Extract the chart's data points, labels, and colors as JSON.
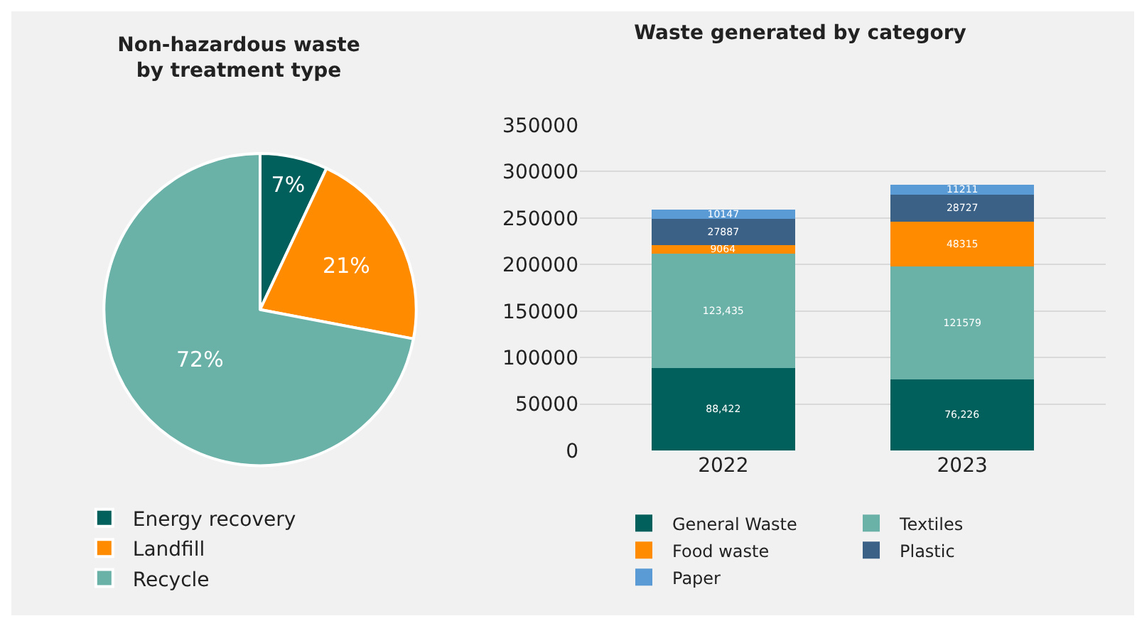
{
  "chart_data": [
    {
      "type": "pie",
      "title": "Non-hazardous waste\nby treatment type",
      "categories": [
        "Energy recovery",
        "Landfill",
        "Recycle"
      ],
      "values": [
        7,
        21,
        72
      ],
      "value_labels": [
        "7%",
        "21%",
        "72%"
      ],
      "colors": [
        "#02605c",
        "#ff8c00",
        "#6ab1a8"
      ],
      "legend": "bottom"
    },
    {
      "type": "bar",
      "title": "Waste generated by category",
      "categories": [
        "2022",
        "2023"
      ],
      "stacked": true,
      "ylim": [
        0,
        350000
      ],
      "yticks": [
        0,
        50000,
        100000,
        150000,
        200000,
        250000,
        300000,
        350000
      ],
      "grid": "y",
      "legend": "bottom",
      "series": [
        {
          "name": "General Waste",
          "color": "#02605c",
          "values": [
            88422,
            76226
          ],
          "value_labels": [
            "88,422",
            "76,226"
          ]
        },
        {
          "name": "Textiles",
          "color": "#6ab1a8",
          "values": [
            123435,
            121579
          ],
          "value_labels": [
            "123,435",
            "121579"
          ]
        },
        {
          "name": "Food waste",
          "color": "#ff8c00",
          "values": [
            9064,
            48315
          ],
          "value_labels": [
            "9064",
            "48315"
          ]
        },
        {
          "name": "Plastic",
          "color": "#3b6187",
          "values": [
            27887,
            28727
          ],
          "value_labels": [
            "27887",
            "28727"
          ]
        },
        {
          "name": "Paper",
          "color": "#5b9bd5",
          "values": [
            10147,
            11211
          ],
          "value_labels": [
            "10147",
            "11211"
          ]
        }
      ]
    }
  ]
}
